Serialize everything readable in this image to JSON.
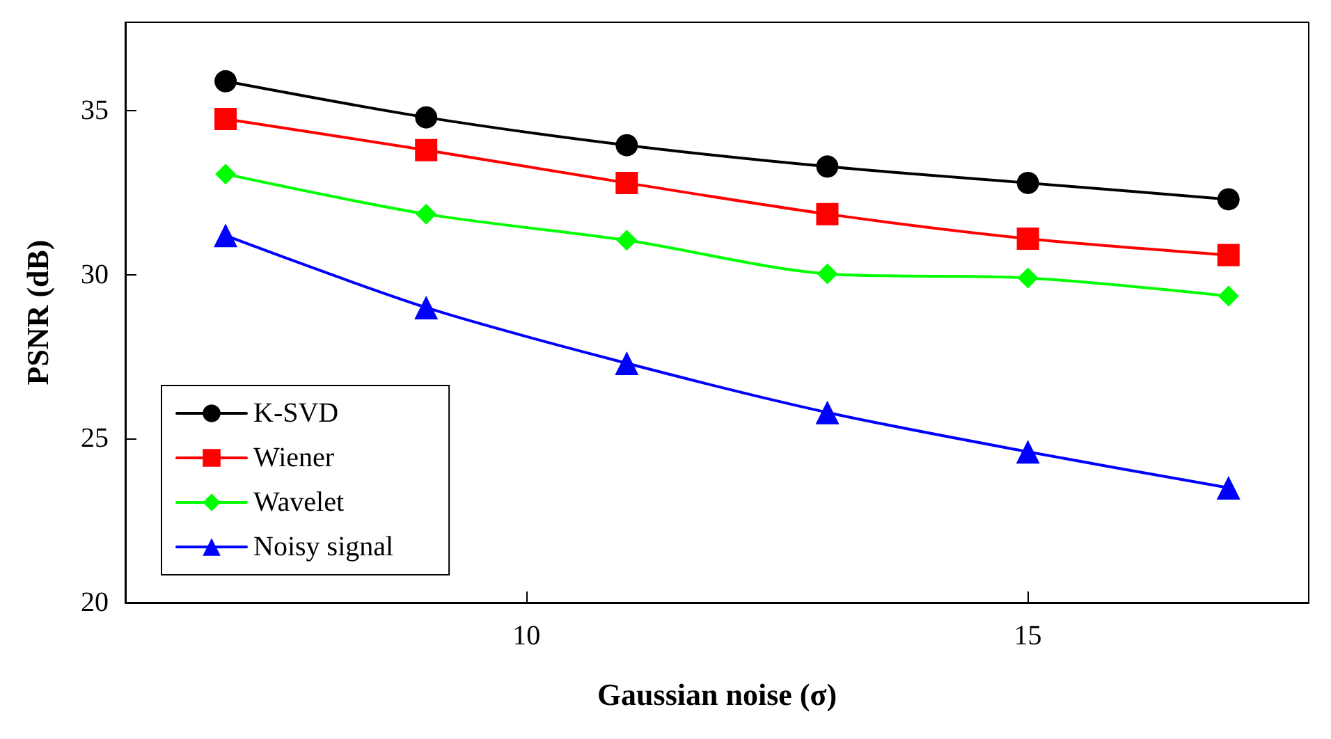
{
  "chart_data": {
    "type": "line",
    "xlabel": "Gaussian noise (σ)",
    "ylabel": "PSNR (dB)",
    "x": [
      7,
      9,
      11,
      13,
      15,
      17
    ],
    "series": [
      {
        "name": "K-SVD",
        "color": "#000000",
        "marker": "circle",
        "values": [
          35.9,
          34.8,
          33.95,
          33.3,
          32.8,
          32.3
        ]
      },
      {
        "name": "Wiener",
        "color": "#ff0000",
        "marker": "square",
        "values": [
          34.75,
          33.8,
          32.8,
          31.85,
          31.1,
          30.6
        ]
      },
      {
        "name": "Wavelet",
        "color": "#00ff00",
        "marker": "diamond",
        "values": [
          33.07,
          31.85,
          31.05,
          30.03,
          29.9,
          29.35
        ]
      },
      {
        "name": "Noisy signal",
        "color": "#0000ff",
        "marker": "triangle",
        "values": [
          31.2,
          29.0,
          27.3,
          25.8,
          24.6,
          23.5
        ]
      }
    ],
    "xlim": [
      6,
      17.8
    ],
    "xticks": [
      10,
      15
    ],
    "ylim": [
      20,
      37.7
    ],
    "yticks": [
      20,
      25,
      30,
      35
    ],
    "grid": false,
    "legend": "bottom left",
    "line_style": "solid"
  }
}
